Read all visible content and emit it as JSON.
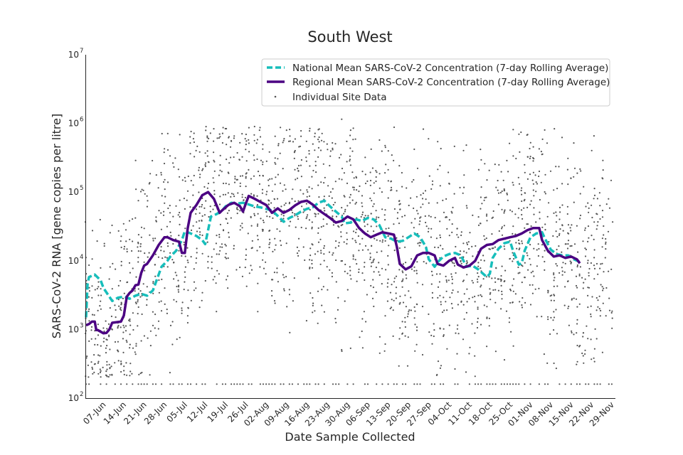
{
  "chart_data": {
    "type": "line",
    "title": "South West",
    "xlabel": "Date Sample Collected",
    "ylabel": "SARS-CoV-2 RNA [gene copies per litre]",
    "yscale": "log",
    "ylim": [
      100,
      10000000
    ],
    "y_ticks": [
      {
        "value": 100,
        "base": "10",
        "exp": "2"
      },
      {
        "value": 1000,
        "base": "10",
        "exp": "3"
      },
      {
        "value": 10000,
        "base": "10",
        "exp": "4"
      },
      {
        "value": 100000,
        "base": "10",
        "exp": "5"
      },
      {
        "value": 1000000,
        "base": "10",
        "exp": "6"
      },
      {
        "value": 10000000,
        "base": "10",
        "exp": "7"
      }
    ],
    "x_range_days": [
      0,
      182
    ],
    "x_ticks": [
      {
        "day": 6,
        "label": "07-Jun"
      },
      {
        "day": 13,
        "label": "14-Jun"
      },
      {
        "day": 20,
        "label": "21-Jun"
      },
      {
        "day": 27,
        "label": "28-Jun"
      },
      {
        "day": 34,
        "label": "05-Jul"
      },
      {
        "day": 41,
        "label": "12-Jul"
      },
      {
        "day": 48,
        "label": "19-Jul"
      },
      {
        "day": 55,
        "label": "26-Jul"
      },
      {
        "day": 62,
        "label": "02-Aug"
      },
      {
        "day": 69,
        "label": "09-Aug"
      },
      {
        "day": 76,
        "label": "16-Aug"
      },
      {
        "day": 83,
        "label": "23-Aug"
      },
      {
        "day": 90,
        "label": "30-Aug"
      },
      {
        "day": 97,
        "label": "06-Sep"
      },
      {
        "day": 104,
        "label": "13-Sep"
      },
      {
        "day": 111,
        "label": "20-Sep"
      },
      {
        "day": 118,
        "label": "27-Sep"
      },
      {
        "day": 125,
        "label": "04-Oct"
      },
      {
        "day": 132,
        "label": "11-Oct"
      },
      {
        "day": 139,
        "label": "18-Oct"
      },
      {
        "day": 146,
        "label": "25-Oct"
      },
      {
        "day": 153,
        "label": "01-Nov"
      },
      {
        "day": 160,
        "label": "08-Nov"
      },
      {
        "day": 167,
        "label": "15-Nov"
      },
      {
        "day": 174,
        "label": "22-Nov"
      },
      {
        "day": 181,
        "label": "29-Nov"
      }
    ],
    "legend": {
      "placement": "top-right",
      "entries": [
        {
          "label": "National Mean SARS-CoV-2 Concentration (7-day Rolling Average)",
          "style": "dashed-line",
          "color": "#17bebb"
        },
        {
          "label": "Regional Mean SARS-CoV-2 Concentration (7-day Rolling Average)",
          "style": "solid-line",
          "color": "#4b0082"
        },
        {
          "label": "Individual Site Data",
          "style": "dot",
          "color": "#555555"
        }
      ]
    },
    "series": [
      {
        "name": "National Mean SARS-CoV-2 Concentration (7-day Rolling Average)",
        "color": "#17bebb",
        "style": "dashed",
        "points": [
          [
            0,
            1500
          ],
          [
            0.5,
            4500
          ],
          [
            1,
            5800
          ],
          [
            3,
            6300
          ],
          [
            5,
            5200
          ],
          [
            6,
            4000
          ],
          [
            8,
            3000
          ],
          [
            9,
            2600
          ],
          [
            11,
            2900
          ],
          [
            13,
            3000
          ],
          [
            15,
            2800
          ],
          [
            17,
            3100
          ],
          [
            19,
            3300
          ],
          [
            21,
            3100
          ],
          [
            23,
            3700
          ],
          [
            26,
            8200
          ],
          [
            28,
            10000
          ],
          [
            29,
            11500
          ],
          [
            31,
            14000
          ],
          [
            33,
            20000
          ],
          [
            34,
            27000
          ],
          [
            36,
            25000
          ],
          [
            38,
            23000
          ],
          [
            40,
            20000
          ],
          [
            41,
            17500
          ],
          [
            43,
            44000
          ],
          [
            45,
            48000
          ],
          [
            47,
            55000
          ],
          [
            48,
            62000
          ],
          [
            50,
            70000
          ],
          [
            52,
            68000
          ],
          [
            54,
            70000
          ],
          [
            56,
            66000
          ],
          [
            58,
            62000
          ],
          [
            60,
            60000
          ],
          [
            62,
            57000
          ],
          [
            64,
            54000
          ],
          [
            66,
            45000
          ],
          [
            68,
            37000
          ],
          [
            70,
            42000
          ],
          [
            72,
            46000
          ],
          [
            74,
            52000
          ],
          [
            76,
            57000
          ],
          [
            78,
            60000
          ],
          [
            80,
            70000
          ],
          [
            82,
            75000
          ],
          [
            84,
            62000
          ],
          [
            86,
            52000
          ],
          [
            88,
            44000
          ],
          [
            89,
            35000
          ],
          [
            91,
            36000
          ],
          [
            93,
            40000
          ],
          [
            95,
            38000
          ],
          [
            97,
            42000
          ],
          [
            99,
            40000
          ],
          [
            101,
            33000
          ],
          [
            103,
            22000
          ],
          [
            105,
            21000
          ],
          [
            107,
            19000
          ],
          [
            109,
            19500
          ],
          [
            111,
            22000
          ],
          [
            113,
            25000
          ],
          [
            115,
            22000
          ],
          [
            117,
            16000
          ],
          [
            118,
            10500
          ],
          [
            120,
            8200
          ],
          [
            121,
            9500
          ],
          [
            123,
            11500
          ],
          [
            125,
            12500
          ],
          [
            127,
            13000
          ],
          [
            129,
            12000
          ],
          [
            131,
            8200
          ],
          [
            133,
            8500
          ],
          [
            135,
            7500
          ],
          [
            137,
            6300
          ],
          [
            138,
            5800
          ],
          [
            139,
            6500
          ],
          [
            140,
            11000
          ],
          [
            142,
            15000
          ],
          [
            144,
            18000
          ],
          [
            146,
            19000
          ],
          [
            147,
            14000
          ],
          [
            149,
            8800
          ],
          [
            150,
            9200
          ],
          [
            151,
            14000
          ],
          [
            153,
            22000
          ],
          [
            155,
            25000
          ],
          [
            157,
            26000
          ],
          [
            158,
            21000
          ],
          [
            160,
            14500
          ],
          [
            162,
            12500
          ],
          [
            164,
            12000
          ],
          [
            166,
            12000
          ],
          [
            168,
            10500
          ],
          [
            170,
            9600
          ]
        ]
      },
      {
        "name": "Regional Mean SARS-CoV-2 Concentration (7-day Rolling Average)",
        "color": "#4b0082",
        "style": "solid",
        "points": [
          [
            0,
            1150
          ],
          [
            1,
            1200
          ],
          [
            2,
            1300
          ],
          [
            3,
            1300
          ],
          [
            3.5,
            980
          ],
          [
            4,
            980
          ],
          [
            6,
            880
          ],
          [
            7,
            890
          ],
          [
            8,
            1000
          ],
          [
            9,
            1250
          ],
          [
            12,
            1300
          ],
          [
            13,
            1600
          ],
          [
            14,
            3000
          ],
          [
            15,
            3400
          ],
          [
            16,
            3700
          ],
          [
            17,
            4400
          ],
          [
            18,
            4500
          ],
          [
            19,
            6700
          ],
          [
            20,
            8500
          ],
          [
            21,
            9000
          ],
          [
            23,
            12000
          ],
          [
            25,
            17000
          ],
          [
            27,
            22000
          ],
          [
            28,
            22000
          ],
          [
            30,
            20000
          ],
          [
            32,
            19000
          ],
          [
            33,
            13000
          ],
          [
            34,
            13000
          ],
          [
            35,
            30000
          ],
          [
            36,
            50000
          ],
          [
            38,
            65000
          ],
          [
            40,
            90000
          ],
          [
            42,
            100000
          ],
          [
            44,
            80000
          ],
          [
            46,
            50000
          ],
          [
            47,
            55000
          ],
          [
            49,
            65000
          ],
          [
            51,
            70000
          ],
          [
            53,
            62000
          ],
          [
            54,
            52000
          ],
          [
            55,
            68000
          ],
          [
            56,
            88000
          ],
          [
            58,
            80000
          ],
          [
            60,
            72000
          ],
          [
            62,
            65000
          ],
          [
            64,
            50000
          ],
          [
            66,
            58000
          ],
          [
            68,
            50000
          ],
          [
            70,
            55000
          ],
          [
            72,
            64000
          ],
          [
            74,
            72000
          ],
          [
            76,
            75000
          ],
          [
            78,
            66000
          ],
          [
            80,
            55000
          ],
          [
            82,
            48000
          ],
          [
            84,
            42000
          ],
          [
            86,
            36000
          ],
          [
            88,
            38000
          ],
          [
            90,
            44000
          ],
          [
            92,
            40000
          ],
          [
            94,
            30000
          ],
          [
            96,
            25000
          ],
          [
            98,
            22000
          ],
          [
            100,
            24000
          ],
          [
            102,
            26000
          ],
          [
            104,
            25000
          ],
          [
            106,
            24000
          ],
          [
            107,
            16000
          ],
          [
            108,
            9000
          ],
          [
            110,
            7500
          ],
          [
            112,
            8300
          ],
          [
            114,
            12000
          ],
          [
            116,
            13000
          ],
          [
            118,
            13000
          ],
          [
            120,
            12000
          ],
          [
            121,
            9000
          ],
          [
            123,
            8500
          ],
          [
            125,
            10000
          ],
          [
            127,
            11000
          ],
          [
            128,
            8800
          ],
          [
            130,
            8000
          ],
          [
            132,
            8500
          ],
          [
            134,
            10000
          ],
          [
            136,
            15000
          ],
          [
            138,
            17000
          ],
          [
            140,
            17500
          ],
          [
            142,
            20000
          ],
          [
            144,
            21000
          ],
          [
            146,
            22000
          ],
          [
            148,
            23000
          ],
          [
            150,
            25000
          ],
          [
            152,
            28000
          ],
          [
            154,
            30000
          ],
          [
            156,
            30000
          ],
          [
            157,
            20000
          ],
          [
            159,
            14000
          ],
          [
            161,
            11500
          ],
          [
            163,
            12000
          ],
          [
            165,
            11000
          ],
          [
            167,
            11500
          ],
          [
            169,
            10500
          ],
          [
            170,
            9200
          ]
        ]
      }
    ],
    "scatter_note": "Individual Site Data",
    "detection_floor": 160,
    "outlier_points": [
      [
        88,
        1150000
      ],
      [
        92,
        850000
      ],
      [
        59,
        580000
      ],
      [
        74,
        650000
      ],
      [
        47,
        520000
      ],
      [
        113,
        420000
      ],
      [
        153,
        330000
      ],
      [
        178,
        210000
      ]
    ]
  }
}
